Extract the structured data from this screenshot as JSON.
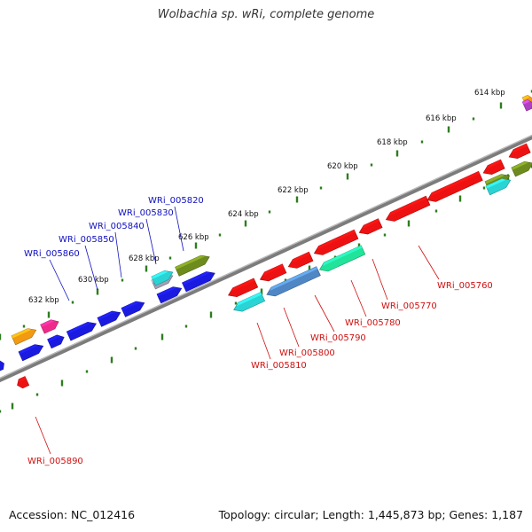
{
  "title": "Wolbachia sp. wRi, complete genome",
  "footer": {
    "accession": "Accession: NC_012416",
    "summary": "Topology: circular; Length: 1,445,873 bp; Genes: 1,187"
  },
  "colors": {
    "backbone": "#8a8a8a",
    "ticks": "#2e7d1f",
    "label_forward": "#1010c0",
    "label_reverse": "#d01010"
  },
  "ticks": [
    "614 kbp",
    "616 kbp",
    "618 kbp",
    "620 kbp",
    "622 kbp",
    "624 kbp",
    "626 kbp",
    "628 kbp",
    "630 kbp",
    "632 kbp"
  ],
  "gene_labels": {
    "forward": [
      "WRi_005820",
      "WRi_005830",
      "WRi_005840",
      "WRi_005850",
      "WRi_005860"
    ],
    "reverse": [
      "WRi_005760",
      "WRi_005770",
      "WRi_005780",
      "WRi_005790",
      "WRi_005800",
      "WRi_005810",
      "WRi_005890"
    ]
  },
  "gene_colors": {
    "red": "#ee1111",
    "blue": "#1a1ae0",
    "orange": "#f29a12",
    "pink": "#ef2a8a",
    "olive": "#6e8b1e",
    "teal": "#2ad4d4",
    "mint": "#22e39a",
    "steel": "#4f86c4",
    "gray": "#a0a0b4",
    "purple": "#b040c0"
  }
}
